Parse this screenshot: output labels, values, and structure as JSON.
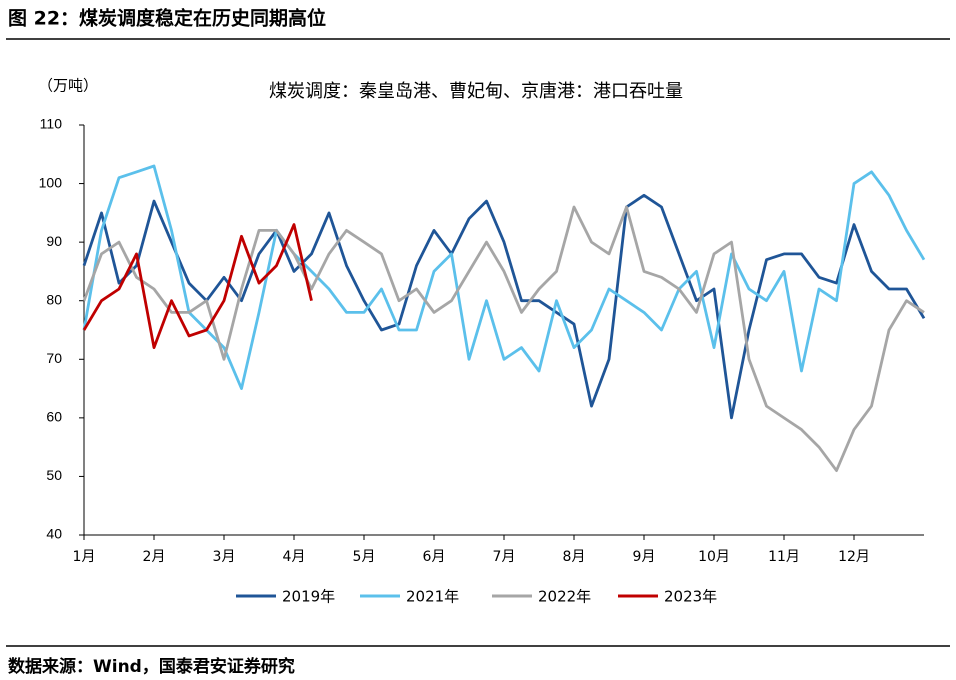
{
  "header": {
    "title": "图 22：煤炭调度稳定在历史同期高位"
  },
  "chart_data": {
    "type": "line",
    "title": "煤炭调度：秦皇岛港、曹妃甸、京唐港：港口吞吐量",
    "y_label": "（万吨）",
    "x": [
      0,
      0.25,
      0.5,
      0.75,
      1,
      1.25,
      1.5,
      1.75,
      2,
      2.25,
      2.5,
      2.75,
      3,
      3.25,
      3.5,
      3.75,
      4,
      4.25,
      4.5,
      4.75,
      5,
      5.25,
      5.5,
      5.75,
      6,
      6.25,
      6.5,
      6.75,
      7,
      7.25,
      7.5,
      7.75,
      8,
      8.25,
      8.5,
      8.75,
      9,
      9.25,
      9.5,
      9.75,
      10,
      10.25,
      10.5,
      10.75,
      11,
      11.25,
      11.5,
      11.75,
      12
    ],
    "xlim": [
      0,
      12
    ],
    "xticks": [
      {
        "value": 0,
        "label": "1月"
      },
      {
        "value": 1,
        "label": "2月"
      },
      {
        "value": 2,
        "label": "3月"
      },
      {
        "value": 3,
        "label": "4月"
      },
      {
        "value": 4,
        "label": "5月"
      },
      {
        "value": 5,
        "label": "6月"
      },
      {
        "value": 6,
        "label": "7月"
      },
      {
        "value": 7,
        "label": "8月"
      },
      {
        "value": 8,
        "label": "9月"
      },
      {
        "value": 9,
        "label": "10月"
      },
      {
        "value": 10,
        "label": "11月"
      },
      {
        "value": 11,
        "label": "12月"
      }
    ],
    "ylim": [
      40,
      110
    ],
    "yticks": [
      40,
      50,
      60,
      70,
      80,
      90,
      100,
      110
    ],
    "grid": false,
    "series": [
      {
        "name": "2019年",
        "color": "#1f5597",
        "values": [
          86,
          95,
          83,
          86,
          97,
          90,
          83,
          80,
          84,
          80,
          88,
          92,
          85,
          88,
          95,
          86,
          80,
          75,
          76,
          86,
          92,
          88,
          94,
          97,
          90,
          80,
          80,
          78,
          76,
          62,
          70,
          96,
          98,
          96,
          88,
          80,
          82,
          60,
          75,
          87,
          88,
          88,
          84,
          83,
          93,
          85,
          82,
          82,
          77
        ]
      },
      {
        "name": "2021年",
        "color": "#5bc0eb",
        "values": [
          75,
          92,
          101,
          102,
          103,
          92,
          78,
          75,
          72,
          65,
          78,
          92,
          88,
          85,
          82,
          78,
          78,
          82,
          75,
          75,
          85,
          88,
          70,
          80,
          70,
          72,
          68,
          80,
          72,
          75,
          82,
          80,
          78,
          75,
          82,
          85,
          72,
          88,
          82,
          80,
          85,
          68,
          82,
          80,
          100,
          102,
          98,
          92,
          87
        ]
      },
      {
        "name": "2022年",
        "color": "#a6a6a6",
        "values": [
          80,
          88,
          90,
          84,
          82,
          78,
          78,
          80,
          70,
          82,
          92,
          92,
          88,
          82,
          88,
          92,
          90,
          88,
          80,
          82,
          78,
          80,
          85,
          90,
          85,
          78,
          82,
          85,
          96,
          90,
          88,
          96,
          85,
          84,
          82,
          78,
          88,
          90,
          70,
          62,
          60,
          58,
          55,
          51,
          58,
          62,
          75,
          80,
          78
        ]
      },
      {
        "name": "2023年",
        "color": "#c00000",
        "values": [
          75,
          80,
          82,
          88,
          72,
          80,
          74,
          75,
          80,
          91,
          83,
          86,
          93,
          80,
          null,
          null,
          null,
          null,
          null,
          null,
          null,
          null,
          null,
          null,
          null,
          null,
          null,
          null,
          null,
          null,
          null,
          null,
          null,
          null,
          null,
          null,
          null,
          null,
          null,
          null,
          null,
          null,
          null,
          null,
          null,
          null,
          null,
          null,
          null
        ]
      }
    ]
  },
  "footer": {
    "source": "数据来源：Wind，国泰君安证券研究"
  }
}
